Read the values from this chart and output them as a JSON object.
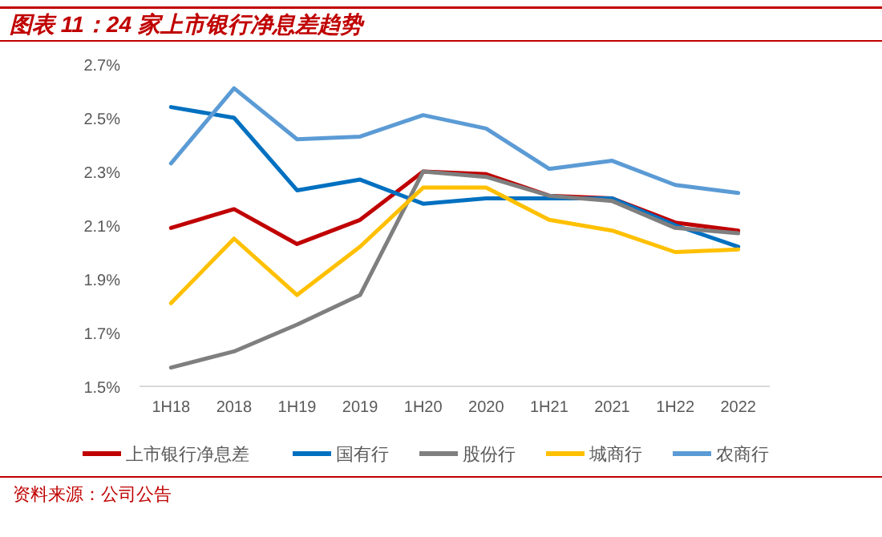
{
  "chart_data": {
    "type": "line",
    "title": "图表 11：24 家上市银行净息差趋势",
    "categories": [
      "1H18",
      "2018",
      "1H19",
      "2019",
      "1H20",
      "2020",
      "1H21",
      "2021",
      "1H22",
      "2022"
    ],
    "series": [
      {
        "name": "上市银行净息差",
        "color": "#c00000",
        "values": [
          2.09,
          2.16,
          2.03,
          2.12,
          2.3,
          2.29,
          2.21,
          2.2,
          2.11,
          2.08
        ]
      },
      {
        "name": "国有行",
        "color": "#0070c0",
        "values": [
          2.54,
          2.5,
          2.23,
          2.27,
          2.18,
          2.2,
          2.2,
          2.2,
          2.1,
          2.02
        ]
      },
      {
        "name": "股份行",
        "color": "#7f7f7f",
        "values": [
          1.57,
          1.63,
          1.73,
          1.84,
          2.3,
          2.28,
          2.21,
          2.19,
          2.09,
          2.07
        ]
      },
      {
        "name": "城商行",
        "color": "#ffc000",
        "values": [
          1.81,
          2.05,
          1.84,
          2.02,
          2.24,
          2.24,
          2.12,
          2.08,
          2.0,
          2.01
        ]
      },
      {
        "name": "农商行",
        "color": "#5b9bd5",
        "values": [
          2.33,
          2.61,
          2.42,
          2.43,
          2.51,
          2.46,
          2.31,
          2.34,
          2.25,
          2.22
        ]
      }
    ],
    "ylim": [
      1.5,
      2.7
    ],
    "yticks": [
      {
        "value": 1.5,
        "label": "1.5%"
      },
      {
        "value": 1.7,
        "label": "1.7%"
      },
      {
        "value": 1.9,
        "label": "1.9%"
      },
      {
        "value": 2.1,
        "label": "2.1%"
      },
      {
        "value": 2.3,
        "label": "2.3%"
      },
      {
        "value": 2.5,
        "label": "2.5%"
      },
      {
        "value": 2.7,
        "label": "2.7%"
      }
    ],
    "legend": "bottom",
    "marker": "none",
    "line_style": "solid",
    "annotations": [
      "资料来源：公司公告"
    ]
  }
}
